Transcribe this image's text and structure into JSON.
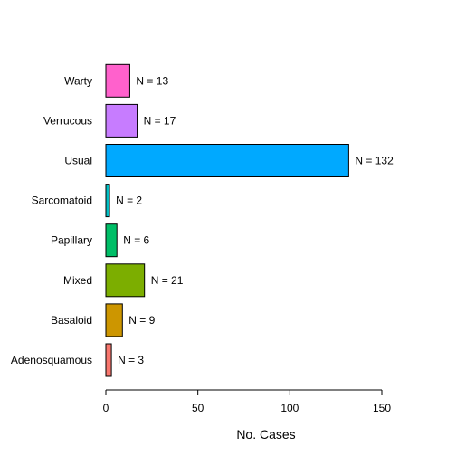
{
  "chart_data": {
    "type": "bar",
    "orientation": "horizontal",
    "categories": [
      "Adenosquamous",
      "Basaloid",
      "Mixed",
      "Papillary",
      "Sarcomatoid",
      "Usual",
      "Verrucous",
      "Warty"
    ],
    "values": [
      3,
      9,
      21,
      6,
      2,
      132,
      17,
      13
    ],
    "data_labels": [
      "N = 3",
      "N = 9",
      "N = 21",
      "N = 6",
      "N = 2",
      "N = 132",
      "N = 17",
      "N = 13"
    ],
    "colors": [
      "#F8766D",
      "#CD9600",
      "#7CAE00",
      "#00BE67",
      "#00BFC4",
      "#00A9FF",
      "#C77CFF",
      "#FF61CC"
    ],
    "xlabel": "No. Cases",
    "xlim": [
      0,
      150
    ],
    "xticks": [
      0,
      50,
      100,
      150
    ],
    "grid": false,
    "legend": "none"
  }
}
